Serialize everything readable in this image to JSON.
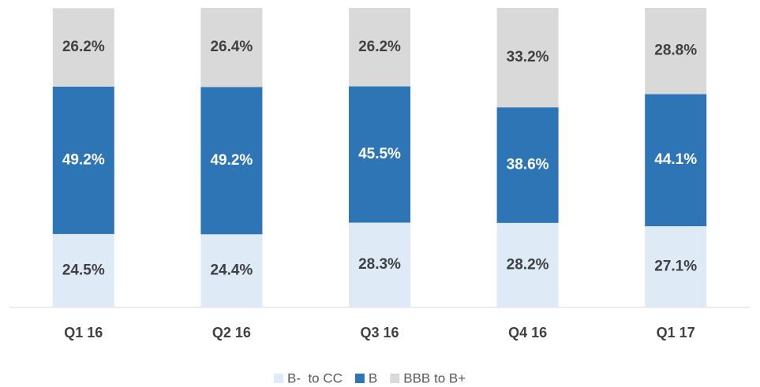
{
  "chart_data": {
    "type": "stacked_bar",
    "categories": [
      "Q1 16",
      "Q2 16",
      "Q3 16",
      "Q4 16",
      "Q1 17"
    ],
    "series": [
      {
        "name": "B-  to CC",
        "color": "#deebf7",
        "label_color": "#404040",
        "values": [
          24.5,
          24.4,
          28.3,
          28.2,
          27.1
        ],
        "value_labels": [
          "24.5%",
          "24.4%",
          "28.3%",
          "28.2%",
          "27.1%"
        ]
      },
      {
        "name": "B",
        "color": "#2e75b6",
        "label_color": "#ffffff",
        "values": [
          49.2,
          49.2,
          45.5,
          38.6,
          44.1
        ],
        "value_labels": [
          "49.2%",
          "49.2%",
          "45.5%",
          "38.6%",
          "44.1%"
        ]
      },
      {
        "name": "BBB to B+",
        "color": "#d9d9d9",
        "label_color": "#404040",
        "values": [
          26.2,
          26.4,
          26.2,
          33.2,
          28.8
        ],
        "value_labels": [
          "26.2%",
          "26.4%",
          "26.2%",
          "33.2%",
          "28.8%"
        ]
      }
    ],
    "ylim": [
      0,
      100
    ],
    "legend": "bottom"
  }
}
